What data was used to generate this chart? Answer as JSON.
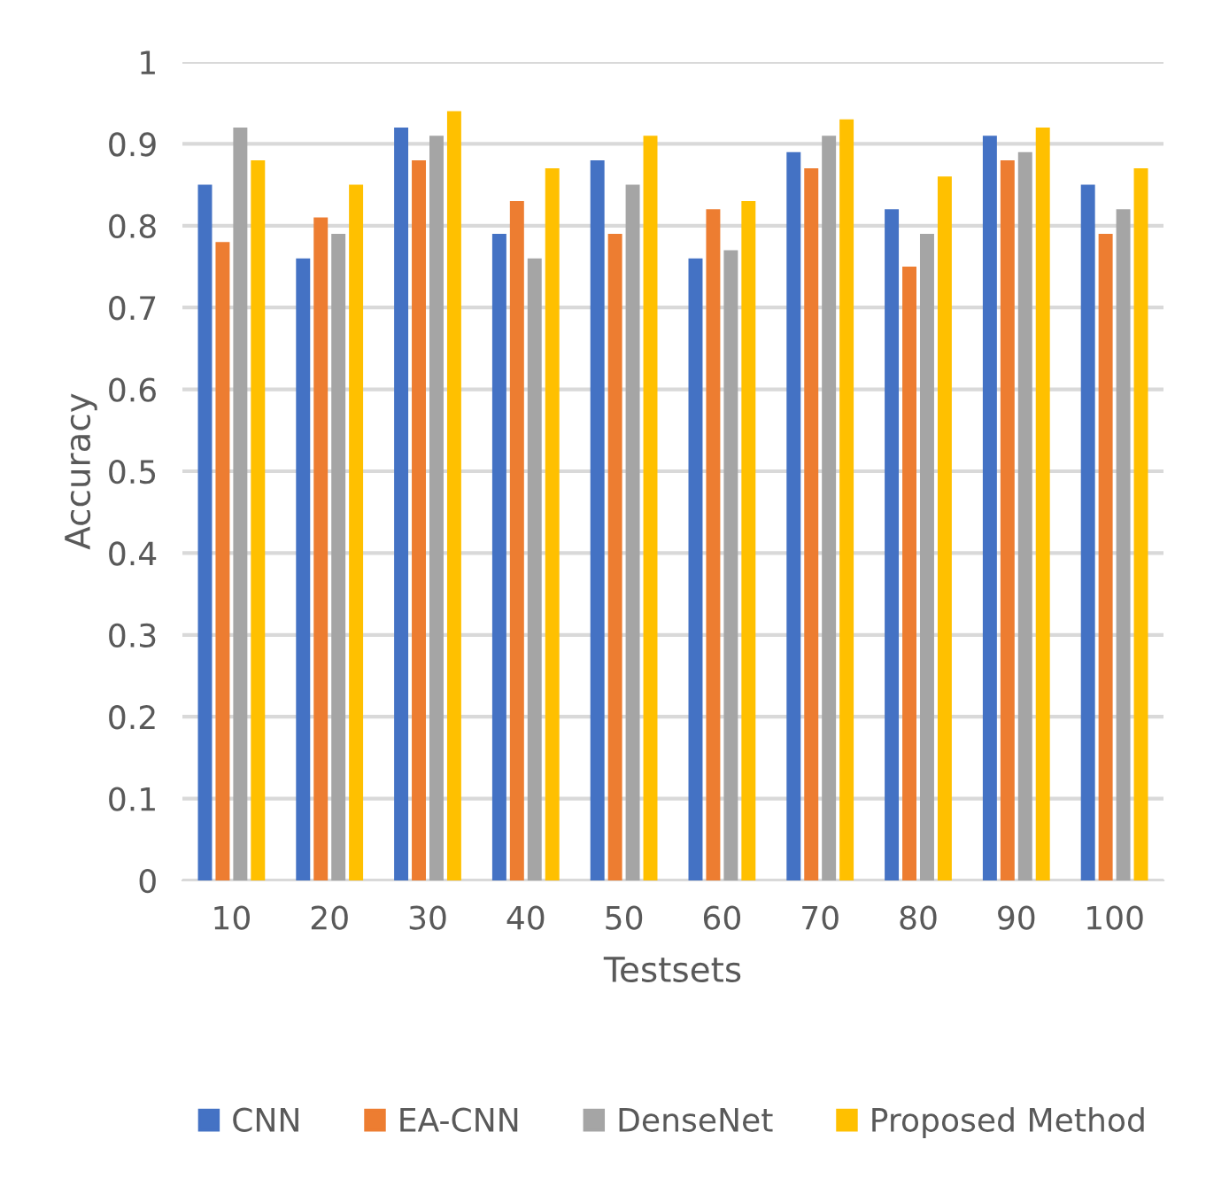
{
  "chart_data": {
    "type": "bar",
    "xlabel": "Testsets",
    "ylabel": "Accuracy",
    "categories": [
      "10",
      "20",
      "30",
      "40",
      "50",
      "60",
      "70",
      "80",
      "90",
      "100"
    ],
    "series": [
      {
        "name": "CNN",
        "color": "#4472c4",
        "values": [
          0.85,
          0.76,
          0.92,
          0.79,
          0.88,
          0.76,
          0.89,
          0.82,
          0.91,
          0.85
        ]
      },
      {
        "name": "EA-CNN",
        "color": "#ed7d31",
        "values": [
          0.78,
          0.81,
          0.88,
          0.83,
          0.79,
          0.82,
          0.87,
          0.75,
          0.88,
          0.79
        ]
      },
      {
        "name": "DenseNet",
        "color": "#a5a5a5",
        "values": [
          0.92,
          0.79,
          0.91,
          0.76,
          0.85,
          0.77,
          0.91,
          0.79,
          0.89,
          0.82
        ]
      },
      {
        "name": "Proposed Method",
        "color": "#ffc000",
        "values": [
          0.88,
          0.85,
          0.94,
          0.87,
          0.91,
          0.83,
          0.93,
          0.86,
          0.92,
          0.87
        ]
      }
    ],
    "ylim": [
      0,
      1
    ],
    "yticks": [
      0,
      0.1,
      0.2,
      0.3,
      0.4,
      0.5,
      0.6,
      0.7,
      0.8,
      0.9,
      1
    ],
    "grid": "y",
    "legend": "bottom"
  }
}
